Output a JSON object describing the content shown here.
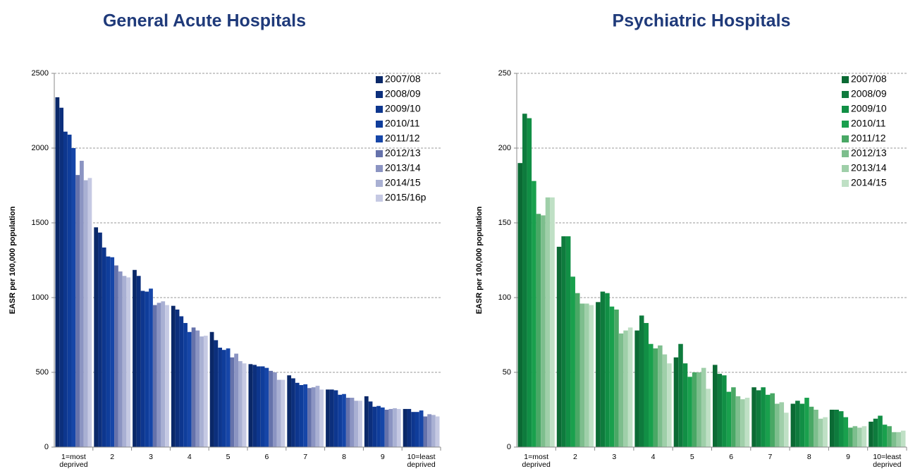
{
  "chart_data": [
    {
      "type": "bar",
      "title": "General Acute Hospitals",
      "y_label": "EASR per 100,000 population",
      "categories": [
        "1=most deprived",
        "2",
        "3",
        "4",
        "5",
        "6",
        "7",
        "8",
        "9",
        "10=least deprived"
      ],
      "ylim": [
        0,
        2500
      ],
      "yticks": [
        0,
        500,
        1000,
        1500,
        2000,
        2500
      ],
      "grid": true,
      "legend": "upper right",
      "series": [
        {
          "name": "2007/08",
          "color": "#0a2868",
          "values": [
            2340,
            1470,
            1185,
            945,
            770,
            555,
            480,
            385,
            340,
            255
          ]
        },
        {
          "name": "2008/09",
          "color": "#0c2f7c",
          "values": [
            2270,
            1435,
            1145,
            920,
            715,
            550,
            460,
            385,
            305,
            255
          ]
        },
        {
          "name": "2009/10",
          "color": "#0d368e",
          "values": [
            2110,
            1335,
            1045,
            875,
            665,
            540,
            430,
            380,
            270,
            235
          ]
        },
        {
          "name": "2010/11",
          "color": "#0f3d9b",
          "values": [
            2090,
            1275,
            1040,
            830,
            650,
            540,
            415,
            350,
            275,
            235
          ]
        },
        {
          "name": "2011/12",
          "color": "#1646a8",
          "values": [
            2000,
            1270,
            1060,
            770,
            660,
            530,
            420,
            355,
            265,
            245
          ]
        },
        {
          "name": "2012/13",
          "color": "#6572ab",
          "values": [
            1820,
            1215,
            950,
            800,
            600,
            510,
            395,
            330,
            250,
            205
          ]
        },
        {
          "name": "2013/14",
          "color": "#8b94c2",
          "values": [
            1915,
            1175,
            965,
            780,
            625,
            500,
            400,
            330,
            255,
            220
          ]
        },
        {
          "name": "2014/15",
          "color": "#a9b0d3",
          "values": [
            1785,
            1145,
            975,
            740,
            575,
            450,
            410,
            310,
            260,
            215
          ]
        },
        {
          "name": "2015/16p",
          "color": "#c5c9e3",
          "values": [
            1800,
            1135,
            950,
            745,
            560,
            450,
            385,
            310,
            255,
            205
          ]
        }
      ]
    },
    {
      "type": "bar",
      "title": "Psychiatric Hospitals",
      "y_label": "EASR per 100,000 population",
      "categories": [
        "1=most deprived",
        "2",
        "3",
        "4",
        "5",
        "6",
        "7",
        "8",
        "9",
        "10=least deprived"
      ],
      "ylim": [
        0,
        250
      ],
      "yticks": [
        0,
        50,
        100,
        150,
        200,
        250
      ],
      "grid": true,
      "legend": "upper right",
      "series": [
        {
          "name": "2007/08",
          "color": "#0b6a34",
          "values": [
            190,
            134,
            97,
            78,
            60,
            55,
            40,
            29,
            25,
            17
          ]
        },
        {
          "name": "2008/09",
          "color": "#0e7b3d",
          "values": [
            223,
            141,
            104,
            88,
            69,
            49,
            38,
            31,
            25,
            19
          ]
        },
        {
          "name": "2009/10",
          "color": "#118f45",
          "values": [
            220,
            141,
            103,
            83,
            56,
            48,
            40,
            29,
            24,
            21
          ]
        },
        {
          "name": "2010/11",
          "color": "#19a04d",
          "values": [
            178,
            114,
            94,
            69,
            47,
            37,
            35,
            33,
            20,
            15
          ]
        },
        {
          "name": "2011/12",
          "color": "#49a865",
          "values": [
            156,
            103,
            92,
            66,
            50,
            40,
            36,
            27,
            13,
            14
          ]
        },
        {
          "name": "2012/13",
          "color": "#7dbe8d",
          "values": [
            155,
            96,
            76,
            68,
            50,
            34,
            29,
            25,
            14,
            10
          ]
        },
        {
          "name": "2013/14",
          "color": "#9fcfa9",
          "values": [
            167,
            96,
            78,
            62,
            53,
            32,
            30,
            19,
            13,
            10
          ]
        },
        {
          "name": "2014/15",
          "color": "#bfe0c5",
          "values": [
            167,
            95,
            80,
            56,
            39,
            33,
            23,
            20,
            14,
            11
          ]
        }
      ]
    }
  ]
}
